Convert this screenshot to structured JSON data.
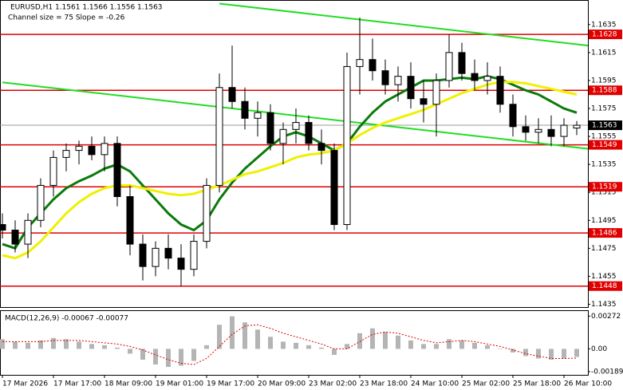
{
  "chart_data": [
    {
      "type": "candlestick",
      "title": "EURUSD,H1  1.1561 1.1566 1.1556 1.1563",
      "subtitle": "Channel size = 75 Slope = -0.26",
      "x": [
        "17 Mar 2026",
        null,
        null,
        null,
        "17 Mar 17:00",
        null,
        null,
        null,
        "18 Mar 09:00",
        null,
        null,
        null,
        "19 Mar 01:00",
        null,
        null,
        null,
        "19 Mar 17:00",
        null,
        null,
        null,
        "20 Mar 09:00",
        null,
        null,
        null,
        "23 Mar 02:00",
        null,
        null,
        null,
        "23 Mar 18:00",
        null,
        null,
        null,
        "24 Mar 10:00",
        null,
        null,
        null,
        "25 Mar 02:00",
        null,
        null,
        null,
        "25 Mar 18:00",
        null,
        null,
        null,
        "26 Mar 10:00",
        null
      ],
      "open": [
        1.1492,
        1.1488,
        1.1478,
        1.1495,
        1.152,
        1.154,
        1.1545,
        1.1548,
        1.1542,
        1.155,
        1.1512,
        1.1478,
        1.1462,
        1.1475,
        1.1468,
        1.146,
        1.148,
        1.152,
        1.159,
        1.158,
        1.1568,
        1.1572,
        1.155,
        1.156,
        1.1565,
        1.155,
        1.1545,
        1.1492,
        1.1605,
        1.161,
        1.1602,
        1.1592,
        1.1598,
        1.1582,
        1.1578,
        1.1595,
        1.1615,
        1.16,
        1.1595,
        1.1598,
        1.1578,
        1.1562,
        1.1558,
        1.156,
        1.1555,
        1.1561
      ],
      "high": [
        1.15,
        1.1495,
        1.15,
        1.1525,
        1.1545,
        1.155,
        1.1552,
        1.1555,
        1.1555,
        1.1555,
        1.152,
        1.1485,
        1.148,
        1.1485,
        1.1478,
        1.1485,
        1.1525,
        1.16,
        1.162,
        1.159,
        1.158,
        1.1578,
        1.1565,
        1.1575,
        1.157,
        1.156,
        1.155,
        1.1615,
        1.164,
        1.1625,
        1.161,
        1.1605,
        1.1608,
        1.1595,
        1.16,
        1.1628,
        1.1622,
        1.161,
        1.1608,
        1.1605,
        1.1585,
        1.157,
        1.1568,
        1.157,
        1.1568,
        1.1566
      ],
      "low": [
        1.1482,
        1.1472,
        1.1468,
        1.149,
        1.1512,
        1.153,
        1.1535,
        1.1538,
        1.153,
        1.1505,
        1.147,
        1.1452,
        1.1455,
        1.146,
        1.1448,
        1.1455,
        1.1475,
        1.1515,
        1.1575,
        1.156,
        1.1555,
        1.1545,
        1.1535,
        1.155,
        1.1545,
        1.1535,
        1.1488,
        1.1488,
        1.1585,
        1.1595,
        1.1585,
        1.158,
        1.1575,
        1.1565,
        1.1555,
        1.159,
        1.1595,
        1.1588,
        1.1585,
        1.1572,
        1.1555,
        1.1552,
        1.155,
        1.1548,
        1.1548,
        1.1556
      ],
      "close": [
        1.1488,
        1.1478,
        1.1495,
        1.152,
        1.154,
        1.1545,
        1.1548,
        1.1542,
        1.155,
        1.1512,
        1.1478,
        1.1462,
        1.1475,
        1.1468,
        1.146,
        1.148,
        1.152,
        1.159,
        1.158,
        1.1568,
        1.1572,
        1.155,
        1.156,
        1.1565,
        1.155,
        1.1545,
        1.1492,
        1.1605,
        1.161,
        1.1602,
        1.1592,
        1.1598,
        1.1582,
        1.1578,
        1.1595,
        1.1615,
        1.16,
        1.1595,
        1.1598,
        1.1578,
        1.1562,
        1.1558,
        1.156,
        1.1555,
        1.1563,
        1.1563
      ],
      "overlays": [
        {
          "color": "#0a7a0a",
          "values": [
            1.1478,
            1.1475,
            1.149,
            1.15,
            1.151,
            1.1518,
            1.1523,
            1.1527,
            1.1532,
            1.1535,
            1.153,
            1.152,
            1.151,
            1.15,
            1.1492,
            1.1488,
            1.1495,
            1.151,
            1.1522,
            1.1532,
            1.154,
            1.1548,
            1.1555,
            1.1558,
            1.1555,
            1.155,
            1.1545,
            1.155,
            1.1562,
            1.1572,
            1.158,
            1.1585,
            1.159,
            1.1595,
            1.1595,
            1.1596,
            1.1597,
            1.1596,
            1.1598,
            1.1596,
            1.1592,
            1.1588,
            1.1585,
            1.158,
            1.1575,
            1.1572
          ]
        },
        {
          "color": "#f0f000",
          "values": [
            1.147,
            1.1468,
            1.1472,
            1.148,
            1.149,
            1.15,
            1.1508,
            1.1514,
            1.1518,
            1.152,
            1.152,
            1.1518,
            1.1516,
            1.1514,
            1.1513,
            1.1514,
            1.1517,
            1.152,
            1.1524,
            1.1528,
            1.153,
            1.1533,
            1.1536,
            1.154,
            1.1542,
            1.1543,
            1.1545,
            1.155,
            1.1556,
            1.1561,
            1.1565,
            1.1568,
            1.1571,
            1.1574,
            1.1578,
            1.1582,
            1.1586,
            1.1589,
            1.1592,
            1.1594,
            1.1594,
            1.1593,
            1.1591,
            1.1589,
            1.1587,
            1.1585
          ]
        }
      ],
      "channel_lines": [
        {
          "start": 1.165,
          "end": 1.162,
          "from": 17
        },
        {
          "start": 1.15937,
          "end": 1.15462,
          "from": 0
        }
      ],
      "channel_color": "#22dd22",
      "levels": [
        1.1628,
        1.1588,
        1.1549,
        1.1519,
        1.1486,
        1.1448
      ],
      "level_color": "#e00000",
      "last_price": 1.1563,
      "ylim": [
        1.1433,
        1.1652
      ],
      "yticks": [
        1.1635,
        1.1615,
        1.1595,
        1.1575,
        1.1555,
        1.1535,
        1.1515,
        1.1495,
        1.1475,
        1.1455,
        1.1435
      ]
    },
    {
      "type": "macd",
      "title": "MACD(12,26,9) -0.00067 -0.00077",
      "values": [
        0.0008,
        0.0006,
        0.0005,
        0.0007,
        0.0009,
        0.0008,
        0.0006,
        0.0004,
        0.0003,
        0.0001,
        -0.0004,
        -0.0009,
        -0.0013,
        -0.0015,
        -0.0014,
        -0.001,
        0.0003,
        0.002,
        0.0027,
        0.0022,
        0.0016,
        0.001,
        0.0006,
        0.0005,
        0.0003,
        0.0001,
        -0.0005,
        0.0004,
        0.0013,
        0.0017,
        0.0014,
        0.0011,
        0.0007,
        0.0004,
        0.0004,
        0.0008,
        0.0007,
        0.0005,
        0.0003,
        0.0,
        -0.0003,
        -0.0006,
        -0.0008,
        -0.0009,
        -0.0008,
        -0.00067
      ],
      "signal": [
        0.0006,
        0.0006,
        0.0006,
        0.0006,
        0.0007,
        0.0007,
        0.0007,
        0.0006,
        0.0005,
        0.0004,
        0.0002,
        -0.0001,
        -0.0005,
        -0.0009,
        -0.0012,
        -0.0013,
        -0.0008,
        0.0002,
        0.0012,
        0.0019,
        0.002,
        0.0017,
        0.0013,
        0.001,
        0.0007,
        0.0004,
        0.0,
        0.0,
        0.0006,
        0.0012,
        0.0014,
        0.0013,
        0.001,
        0.0007,
        0.0005,
        0.0006,
        0.0007,
        0.0006,
        0.0004,
        0.0002,
        -0.0001,
        -0.0004,
        -0.0006,
        -0.0008,
        -0.0008,
        -0.00077
      ],
      "color": "#b4b4b4",
      "signal_color": "#e00000",
      "ylim": [
        -0.00216,
        0.00314
      ],
      "yticks": [
        0.00272,
        {
          "value": 0,
          "label": "0.00"
        },
        -0.00189
      ]
    }
  ]
}
